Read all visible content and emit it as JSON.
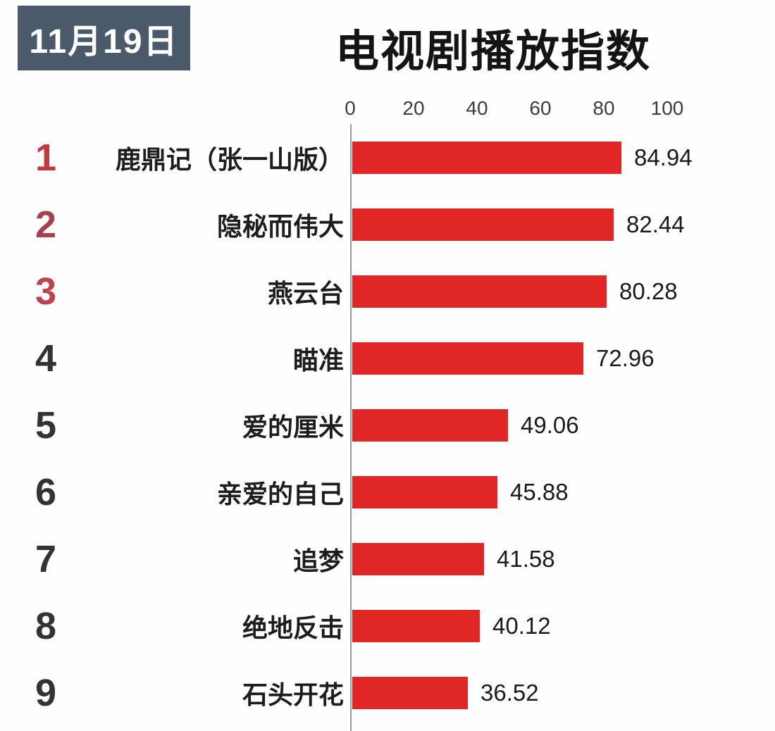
{
  "header": {
    "date_badge": "11月19日",
    "title": "电视剧播放指数"
  },
  "chart_data": {
    "type": "bar",
    "orientation": "horizontal",
    "title": "电视剧播放指数",
    "subtitle": "11月19日",
    "xlim": [
      0,
      100
    ],
    "x_ticks": [
      0,
      20,
      40,
      60,
      80,
      100
    ],
    "grid": false,
    "bar_color": "#e12626",
    "axis_line_color": "#9a9a9a",
    "badge_color": "#4a5a6a",
    "items": [
      {
        "rank": "1",
        "label": "鹿鼎记（张一山版）",
        "value": 84.94,
        "value_label": "84.94",
        "rank_color": "#c23a40"
      },
      {
        "rank": "2",
        "label": "隐秘而伟大",
        "value": 82.44,
        "value_label": "82.44",
        "rank_color": "#a8404e"
      },
      {
        "rank": "3",
        "label": "燕云台",
        "value": 80.28,
        "value_label": "80.28",
        "rank_color": "#bf4150"
      },
      {
        "rank": "4",
        "label": "瞄准",
        "value": 72.96,
        "value_label": "72.96",
        "rank_color": "#333333"
      },
      {
        "rank": "5",
        "label": "爱的厘米",
        "value": 49.06,
        "value_label": "49.06",
        "rank_color": "#333333"
      },
      {
        "rank": "6",
        "label": "亲爱的自己",
        "value": 45.88,
        "value_label": "45.88",
        "rank_color": "#333333"
      },
      {
        "rank": "7",
        "label": "追梦",
        "value": 41.58,
        "value_label": "41.58",
        "rank_color": "#333333"
      },
      {
        "rank": "8",
        "label": "绝地反击",
        "value": 40.12,
        "value_label": "40.12",
        "rank_color": "#333333"
      },
      {
        "rank": "9",
        "label": "石头开花",
        "value": 36.52,
        "value_label": "36.52",
        "rank_color": "#333333"
      }
    ]
  }
}
